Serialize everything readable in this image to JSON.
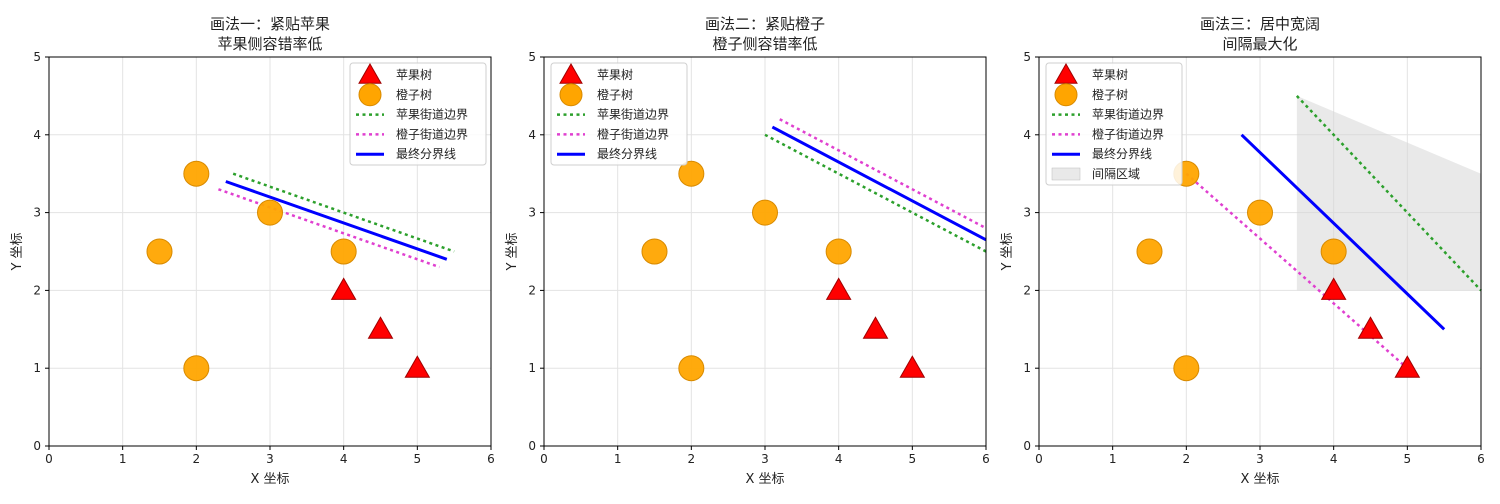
{
  "chart_data": [
    {
      "type": "scatter",
      "title": "画法一：紧贴苹果",
      "subtitle": "苹果侧容错率低",
      "xlabel": "X 坐标",
      "ylabel": "Y 坐标",
      "xlim": [
        0,
        6
      ],
      "ylim": [
        0,
        5
      ],
      "xticks": [
        "0",
        "1",
        "2",
        "3",
        "4",
        "5",
        "6"
      ],
      "yticks": [
        "0",
        "1",
        "2",
        "3",
        "4",
        "5"
      ],
      "grid": true,
      "legend_position": "top-right",
      "series": [
        {
          "name": "苹果树",
          "kind": "marker",
          "marker": "triangle",
          "color": "#ff0000",
          "points": [
            [
              4,
              2
            ],
            [
              4.5,
              1.5
            ],
            [
              5,
              1
            ]
          ]
        },
        {
          "name": "橙子树",
          "kind": "marker",
          "marker": "circle",
          "color": "#ffa500",
          "points": [
            [
              2,
              3.5
            ],
            [
              1.5,
              2.5
            ],
            [
              3,
              3
            ],
            [
              4,
              2.5
            ],
            [
              2,
              1
            ]
          ]
        },
        {
          "name": "苹果街道边界",
          "kind": "line",
          "style": "dotted",
          "color": "#2ca02c",
          "points": [
            [
              2.5,
              3.5
            ],
            [
              5.5,
              2.5
            ]
          ]
        },
        {
          "name": "橙子街道边界",
          "kind": "line",
          "style": "dotted",
          "color": "#e040d0",
          "points": [
            [
              2.3,
              3.3
            ],
            [
              5.3,
              2.3
            ]
          ]
        },
        {
          "name": "最终分界线",
          "kind": "line",
          "style": "solid",
          "color": "#0000ff",
          "points": [
            [
              2.4,
              3.4
            ],
            [
              5.4,
              2.4
            ]
          ]
        }
      ]
    },
    {
      "type": "scatter",
      "title": "画法二：紧贴橙子",
      "subtitle": "橙子侧容错率低",
      "xlabel": "X 坐标",
      "ylabel": "Y 坐标",
      "xlim": [
        0,
        6
      ],
      "ylim": [
        0,
        5
      ],
      "xticks": [
        "0",
        "1",
        "2",
        "3",
        "4",
        "5",
        "6"
      ],
      "yticks": [
        "0",
        "1",
        "2",
        "3",
        "4",
        "5"
      ],
      "grid": true,
      "legend_position": "top-left",
      "series": [
        {
          "name": "苹果树",
          "kind": "marker",
          "marker": "triangle",
          "color": "#ff0000",
          "points": [
            [
              4,
              2
            ],
            [
              4.5,
              1.5
            ],
            [
              5,
              1
            ]
          ]
        },
        {
          "name": "橙子树",
          "kind": "marker",
          "marker": "circle",
          "color": "#ffa500",
          "points": [
            [
              2,
              3.5
            ],
            [
              1.5,
              2.5
            ],
            [
              3,
              3
            ],
            [
              4,
              2.5
            ],
            [
              2,
              1
            ]
          ]
        },
        {
          "name": "苹果街道边界",
          "kind": "line",
          "style": "dotted",
          "color": "#2ca02c",
          "points": [
            [
              3,
              4
            ],
            [
              6,
              2.5
            ]
          ]
        },
        {
          "name": "橙子街道边界",
          "kind": "line",
          "style": "dotted",
          "color": "#e040d0",
          "points": [
            [
              3.2,
              4.2
            ],
            [
              6,
              2.8
            ]
          ]
        },
        {
          "name": "最终分界线",
          "kind": "line",
          "style": "solid",
          "color": "#0000ff",
          "points": [
            [
              3.1,
              4.1
            ],
            [
              6,
              2.65
            ]
          ]
        }
      ]
    },
    {
      "type": "scatter",
      "title": "画法三：居中宽阔",
      "subtitle": "间隔最大化",
      "xlabel": "X 坐标",
      "ylabel": "Y 坐标",
      "xlim": [
        0,
        6
      ],
      "ylim": [
        0,
        5
      ],
      "xticks": [
        "0",
        "1",
        "2",
        "3",
        "4",
        "5",
        "6"
      ],
      "yticks": [
        "0",
        "1",
        "2",
        "3",
        "4",
        "5"
      ],
      "grid": true,
      "legend_position": "top-left",
      "series": [
        {
          "name": "苹果树",
          "kind": "marker",
          "marker": "triangle",
          "color": "#ff0000",
          "points": [
            [
              4,
              2
            ],
            [
              4.5,
              1.5
            ],
            [
              5,
              1
            ]
          ]
        },
        {
          "name": "橙子树",
          "kind": "marker",
          "marker": "circle",
          "color": "#ffa500",
          "points": [
            [
              2,
              3.5
            ],
            [
              1.5,
              2.5
            ],
            [
              3,
              3
            ],
            [
              4,
              2.5
            ],
            [
              2,
              1
            ]
          ]
        },
        {
          "name": "苹果街道边界",
          "kind": "line",
          "style": "dotted",
          "color": "#2ca02c",
          "points": [
            [
              3.5,
              4.5
            ],
            [
              6,
              2
            ]
          ]
        },
        {
          "name": "橙子街道边界",
          "kind": "line",
          "style": "dotted",
          "color": "#e040d0",
          "points": [
            [
              2,
              3.5
            ],
            [
              5,
              1
            ]
          ]
        },
        {
          "name": "最终分界线",
          "kind": "line",
          "style": "solid",
          "color": "#0000ff",
          "points": [
            [
              2.75,
              4
            ],
            [
              5.5,
              1.5
            ]
          ]
        },
        {
          "name": "间隔区域",
          "kind": "area",
          "color": "#d3d3d3",
          "points": [
            [
              3.5,
              4.5
            ],
            [
              3.5,
              2
            ],
            [
              6,
              3.5
            ],
            [
              6,
              2
            ]
          ]
        }
      ]
    }
  ]
}
